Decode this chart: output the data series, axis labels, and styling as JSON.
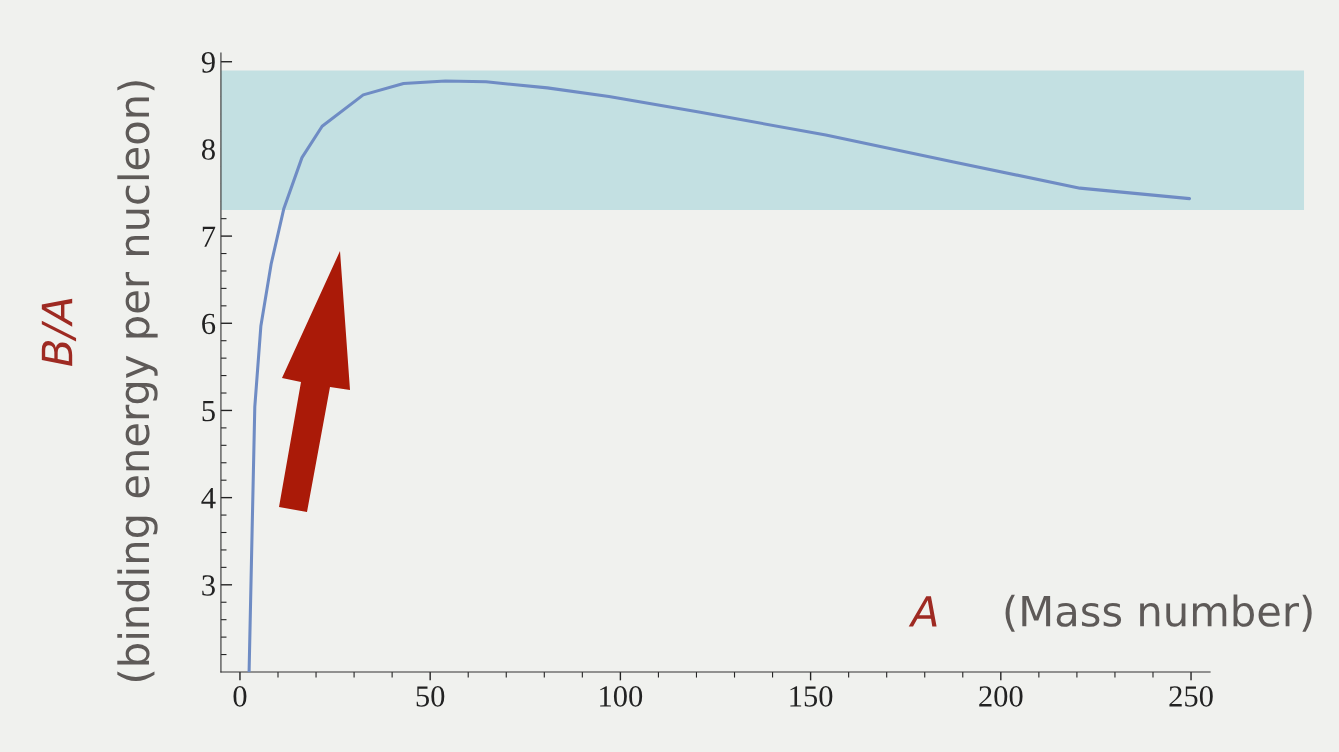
{
  "chart_data": {
    "type": "line",
    "xlabel": "(Mass number)",
    "ylabel": "(binding energy per nucleon)",
    "annotations": [
      "B/A",
      "A"
    ],
    "series": [
      {
        "color": "#6f8cc4",
        "x": [
          2.4,
          3.2,
          3.9,
          5.5,
          8.2,
          11.5,
          16.3,
          21.6,
          32.4,
          43,
          54,
          64.7,
          80.8,
          97,
          121,
          154,
          187.6,
          220.8,
          249.6
        ],
        "values": [
          2.0,
          3.63,
          5.04,
          5.97,
          6.68,
          7.31,
          7.9,
          8.26,
          8.62,
          8.75,
          8.78,
          8.77,
          8.7,
          8.6,
          8.42,
          8.16,
          7.85,
          7.55,
          7.43
        ]
      }
    ],
    "bands": [
      {
        "axis": "y",
        "from": 7.3,
        "to": 8.9,
        "color": "#c3e0e2"
      }
    ],
    "xlim": [
      -5,
      255
    ],
    "ylim": [
      2,
      9.1
    ],
    "xticks": [
      0,
      50,
      100,
      150,
      200,
      250,
      {
        "value": 10,
        "label": null
      },
      {
        "value": 20,
        "label": null
      },
      {
        "value": 30,
        "label": null
      },
      {
        "value": 40,
        "label": null
      },
      {
        "value": 60,
        "label": null
      },
      {
        "value": 70,
        "label": null
      },
      {
        "value": 80,
        "label": null
      },
      {
        "value": 90,
        "label": null
      },
      {
        "value": 110,
        "label": null
      },
      {
        "value": 120,
        "label": null
      },
      {
        "value": 130,
        "label": null
      },
      {
        "value": 140,
        "label": null
      },
      {
        "value": 160,
        "label": null
      },
      {
        "value": 170,
        "label": null
      },
      {
        "value": 180,
        "label": null
      },
      {
        "value": 190,
        "label": null
      },
      {
        "value": 210,
        "label": null
      },
      {
        "value": 220,
        "label": null
      },
      {
        "value": 230,
        "label": null
      },
      {
        "value": 240,
        "label": null
      }
    ],
    "yticks": [
      3,
      4,
      5,
      6,
      7,
      8,
      9,
      {
        "value": 2.2,
        "label": null
      },
      {
        "value": 2.4,
        "label": null
      },
      {
        "value": 2.6,
        "label": null
      },
      {
        "value": 2.8,
        "label": null
      },
      {
        "value": 3.2,
        "label": null
      },
      {
        "value": 3.4,
        "label": null
      },
      {
        "value": 3.6,
        "label": null
      },
      {
        "value": 3.8,
        "label": null
      },
      {
        "value": 4.2,
        "label": null
      },
      {
        "value": 4.4,
        "label": null
      },
      {
        "value": 4.6,
        "label": null
      },
      {
        "value": 4.8,
        "label": null
      },
      {
        "value": 5.2,
        "label": null
      },
      {
        "value": 5.4,
        "label": null
      },
      {
        "value": 5.6,
        "label": null
      },
      {
        "value": 5.8,
        "label": null
      },
      {
        "value": 6.2,
        "label": null
      },
      {
        "value": 6.4,
        "label": null
      },
      {
        "value": 6.6,
        "label": null
      },
      {
        "value": 6.8,
        "label": null
      },
      {
        "value": 7.2,
        "label": null
      },
      {
        "value": 7.4,
        "label": null
      },
      {
        "value": 7.6,
        "label": null
      },
      {
        "value": 7.8,
        "label": null
      },
      {
        "value": 8.2,
        "label": null
      },
      {
        "value": 8.4,
        "label": null
      },
      {
        "value": 8.6,
        "label": null
      },
      {
        "value": 8.8,
        "label": null
      }
    ],
    "grid": false,
    "legend": false,
    "marker": "none",
    "line_style": "solid"
  }
}
